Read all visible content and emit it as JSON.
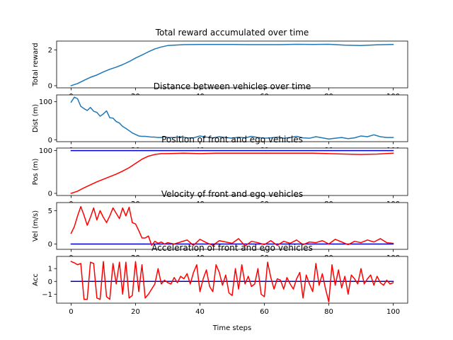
{
  "figure": {
    "background": "#ffffff"
  },
  "chart_data": [
    {
      "type": "line",
      "title": "Total reward accumulated over time",
      "xlabel": "",
      "ylabel": "Total reward",
      "xlim": [
        -4.5,
        104.5
      ],
      "ylim": [
        -0.12,
        2.5
      ],
      "xticks": [
        0,
        20,
        40,
        60,
        80,
        100
      ],
      "yticks": [
        0,
        2
      ],
      "grid": false,
      "series": [
        {
          "color": "#1f77b4",
          "x": [
            0,
            2,
            4,
            6,
            8,
            10,
            12,
            14,
            16,
            18,
            20,
            22,
            24,
            26,
            28,
            30,
            35,
            40,
            45,
            50,
            55,
            60,
            65,
            70,
            75,
            80,
            85,
            90,
            95,
            100
          ],
          "y": [
            0,
            0.12,
            0.3,
            0.47,
            0.6,
            0.77,
            0.92,
            1.04,
            1.18,
            1.35,
            1.55,
            1.72,
            1.9,
            2.06,
            2.17,
            2.25,
            2.3,
            2.31,
            2.31,
            2.31,
            2.3,
            2.3,
            2.3,
            2.32,
            2.31,
            2.32,
            2.27,
            2.25,
            2.29,
            2.31
          ]
        }
      ]
    },
    {
      "type": "line",
      "title": "Distance between vehicles over time",
      "xlabel": "",
      "ylabel": "Dist (m)",
      "xlim": [
        -4.5,
        104.5
      ],
      "ylim": [
        -5,
        118
      ],
      "xticks": [
        0,
        20,
        40,
        60,
        80,
        100
      ],
      "yticks": [
        0,
        100
      ],
      "grid": false,
      "series": [
        {
          "color": "#1f77b4",
          "x": [
            0,
            1,
            2,
            3,
            4,
            5,
            6,
            7,
            8,
            9,
            10,
            11,
            12,
            13,
            14,
            15,
            16,
            17,
            18,
            19,
            20,
            21,
            22,
            23,
            24,
            25,
            26,
            27,
            28,
            29,
            30,
            32,
            34,
            36,
            38,
            40,
            42,
            44,
            46,
            48,
            50,
            52,
            54,
            56,
            58,
            60,
            62,
            64,
            66,
            68,
            70,
            72,
            74,
            76,
            78,
            80,
            82,
            84,
            86,
            88,
            90,
            92,
            94,
            96,
            98,
            100
          ],
          "y": [
            99,
            112,
            108,
            88,
            82,
            77,
            85,
            75,
            72,
            62,
            68,
            76,
            58,
            57,
            48,
            44,
            35,
            30,
            24,
            18,
            14,
            10,
            9,
            9,
            8,
            7,
            7,
            6,
            6,
            8,
            6,
            6,
            8,
            5,
            5,
            10,
            7,
            5,
            8,
            6,
            4,
            7,
            5,
            9,
            6,
            4,
            5,
            7,
            4,
            6,
            9,
            5,
            4,
            8,
            5,
            2,
            4,
            6,
            3,
            5,
            10,
            8,
            13,
            8,
            6,
            6
          ]
        }
      ]
    },
    {
      "type": "line",
      "title": "Position of front and ego vehicles",
      "xlabel": "",
      "ylabel": "Pos (m)",
      "xlim": [
        -4.5,
        104.5
      ],
      "ylim": [
        -5,
        106
      ],
      "xticks": [
        0,
        20,
        40,
        60,
        80,
        100
      ],
      "yticks": [
        0,
        100
      ],
      "grid": false,
      "series": [
        {
          "color": "#0000cc",
          "x": [
            0,
            100
          ],
          "y": [
            100,
            100
          ]
        },
        {
          "color": "#ff0000",
          "x": [
            0,
            2,
            4,
            6,
            8,
            10,
            12,
            14,
            16,
            18,
            20,
            22,
            24,
            26,
            28,
            30,
            35,
            40,
            45,
            50,
            55,
            60,
            65,
            70,
            75,
            80,
            85,
            90,
            95,
            100
          ],
          "y": [
            0,
            5,
            13,
            20,
            27,
            33,
            39,
            45,
            52,
            60,
            70,
            80,
            87,
            91,
            93,
            93,
            94,
            93,
            94,
            94,
            94,
            94,
            94,
            94,
            94,
            93,
            92,
            91,
            92,
            94
          ]
        }
      ]
    },
    {
      "type": "line",
      "title": "Velocity of front and ego vehicles",
      "xlabel": "",
      "ylabel": "Vel (m/s)",
      "xlim": [
        -4.5,
        104.5
      ],
      "ylim": [
        -0.8,
        6.2
      ],
      "xticks": [
        0,
        20,
        40,
        60,
        80,
        100
      ],
      "yticks": [
        0,
        5
      ],
      "grid": false,
      "series": [
        {
          "color": "#0000cc",
          "x": [
            0,
            100
          ],
          "y": [
            0,
            0
          ]
        },
        {
          "color": "#ff0000",
          "x": [
            0,
            1,
            2,
            3,
            4,
            5,
            6,
            7,
            8,
            9,
            10,
            11,
            12,
            13,
            14,
            15,
            16,
            17,
            18,
            19,
            20,
            21,
            22,
            23,
            24,
            25,
            26,
            27,
            28,
            29,
            30,
            32,
            34,
            36,
            38,
            40,
            42,
            44,
            46,
            48,
            50,
            52,
            54,
            56,
            58,
            60,
            62,
            64,
            66,
            68,
            70,
            72,
            74,
            76,
            78,
            80,
            82,
            84,
            86,
            88,
            90,
            92,
            94,
            96,
            98,
            100
          ],
          "y": [
            1.6,
            2.6,
            4.2,
            5.6,
            4.3,
            2.8,
            4.0,
            5.4,
            3.6,
            5.0,
            4.0,
            3.2,
            4.2,
            5.4,
            4.6,
            3.8,
            5.4,
            4.2,
            5.5,
            3.2,
            3.0,
            2.0,
            0.9,
            0.9,
            1.2,
            -0.2,
            0.4,
            0.1,
            0.3,
            0.0,
            0.2,
            0.0,
            0.3,
            0.6,
            -0.2,
            0.7,
            0.2,
            -0.2,
            0.5,
            0.3,
            0.1,
            0.8,
            -0.3,
            0.4,
            0.2,
            -0.1,
            0.5,
            -0.2,
            0.4,
            0.1,
            0.6,
            -0.1,
            0.3,
            0.2,
            0.5,
            0.0,
            0.7,
            0.3,
            -0.1,
            0.4,
            0.2,
            0.6,
            0.3,
            0.8,
            0.2,
            0.1
          ]
        }
      ]
    },
    {
      "type": "line",
      "title": "Acceleration of front and ego vehicles",
      "xlabel": "Time steps",
      "ylabel": "Acc",
      "xlim": [
        -4.5,
        104.5
      ],
      "ylim": [
        -1.7,
        1.95
      ],
      "xticks": [
        0,
        20,
        40,
        60,
        80,
        100
      ],
      "yticks": [
        -1,
        0,
        1
      ],
      "grid": false,
      "series": [
        {
          "color": "#0000cc",
          "x": [
            0,
            100
          ],
          "y": [
            0,
            0
          ]
        },
        {
          "color": "#ff0000",
          "x": [
            0,
            1,
            2,
            3,
            4,
            5,
            6,
            7,
            8,
            9,
            10,
            11,
            12,
            13,
            14,
            15,
            16,
            17,
            18,
            19,
            20,
            21,
            22,
            23,
            24,
            25,
            26,
            27,
            28,
            29,
            30,
            31,
            32,
            33,
            34,
            35,
            36,
            37,
            38,
            39,
            40,
            41,
            42,
            43,
            44,
            45,
            46,
            47,
            48,
            49,
            50,
            51,
            52,
            53,
            54,
            55,
            56,
            57,
            58,
            59,
            60,
            61,
            62,
            63,
            64,
            65,
            66,
            67,
            68,
            69,
            70,
            71,
            72,
            73,
            74,
            75,
            76,
            77,
            78,
            79,
            80,
            81,
            82,
            83,
            84,
            85,
            86,
            87,
            88,
            89,
            90,
            91,
            92,
            93,
            94,
            95,
            96,
            97,
            98,
            99,
            100
          ],
          "y": [
            1.55,
            1.45,
            1.3,
            1.4,
            -1.4,
            -1.4,
            1.5,
            1.4,
            -1.3,
            -1.4,
            1.55,
            -1.2,
            -1.4,
            1.4,
            -0.2,
            1.5,
            -1.0,
            1.5,
            -1.3,
            -1.1,
            1.55,
            -0.8,
            1.3,
            -1.3,
            -1.0,
            -0.6,
            -0.2,
            1.0,
            -0.2,
            0.1,
            -0.1,
            -0.2,
            0.3,
            -0.1,
            0.4,
            0.2,
            0.6,
            -0.2,
            0.7,
            1.3,
            -0.8,
            0.2,
            0.9,
            -0.4,
            -0.8,
            1.3,
            0.7,
            -0.3,
            0.5,
            -0.9,
            -1.1,
            1.0,
            -0.6,
            1.3,
            -0.2,
            0.4,
            -0.4,
            -0.2,
            1.0,
            -1.0,
            -1.2,
            1.5,
            0.3,
            -0.6,
            0.2,
            0.1,
            -0.6,
            0.3,
            -0.2,
            -0.6,
            0.2,
            0.7,
            -1.3,
            0.5,
            -0.2,
            -0.8,
            1.4,
            -0.3,
            0.6,
            -0.6,
            -1.6,
            1.3,
            -0.3,
            0.9,
            -0.5,
            0.4,
            -1.0,
            0.5,
            0.2,
            -0.2,
            1.0,
            -0.2,
            0.2,
            0.5,
            -0.3,
            0.4,
            -0.1,
            -0.3,
            0.1,
            -0.2,
            -0.1
          ]
        }
      ]
    }
  ]
}
